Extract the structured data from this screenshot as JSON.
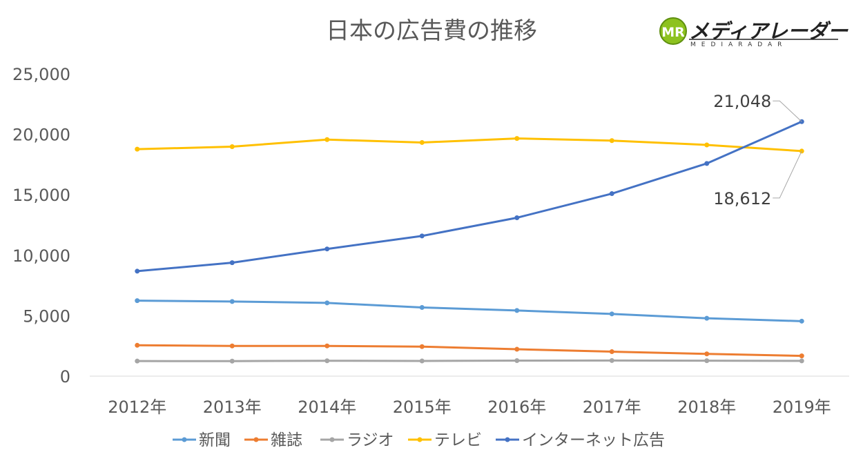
{
  "logo": {
    "mark": "MR",
    "name": "メディアレーダー",
    "sub": "MEDIARADAR"
  },
  "chart_data": {
    "type": "line",
    "title": "日本の広告費の推移",
    "xlabel": "",
    "ylabel": "",
    "categories": [
      "2012年",
      "2013年",
      "2014年",
      "2015年",
      "2016年",
      "2017年",
      "2018年",
      "2019年"
    ],
    "ylim": [
      0,
      25000
    ],
    "yticks": [
      0,
      5000,
      10000,
      15000,
      20000,
      25000
    ],
    "ytick_labels": [
      "0",
      "5,000",
      "10,000",
      "15,000",
      "20,000",
      "25,000"
    ],
    "grid": false,
    "legend_position": "bottom",
    "series": [
      {
        "name": "新聞",
        "color": "#5B9BD5",
        "values": [
          6242,
          6170,
          6057,
          5679,
          5431,
          5147,
          4784,
          4547
        ]
      },
      {
        "name": "雑誌",
        "color": "#ED7D31",
        "values": [
          2551,
          2499,
          2500,
          2443,
          2223,
          2023,
          1841,
          1675
        ]
      },
      {
        "name": "ラジオ",
        "color": "#A5A5A5",
        "values": [
          1246,
          1243,
          1272,
          1254,
          1285,
          1290,
          1278,
          1260
        ]
      },
      {
        "name": "テレビ",
        "color": "#FFC000",
        "values": [
          18770,
          18977,
          19564,
          19323,
          19657,
          19478,
          19123,
          18612
        ]
      },
      {
        "name": "インターネット広告",
        "color": "#4472C4",
        "values": [
          8680,
          9381,
          10519,
          11594,
          13100,
          15094,
          17589,
          21048
        ]
      }
    ],
    "annotations": [
      {
        "text": "21,048",
        "series": "インターネット広告",
        "category": "2019年"
      },
      {
        "text": "18,612",
        "series": "テレビ",
        "category": "2019年"
      }
    ]
  }
}
